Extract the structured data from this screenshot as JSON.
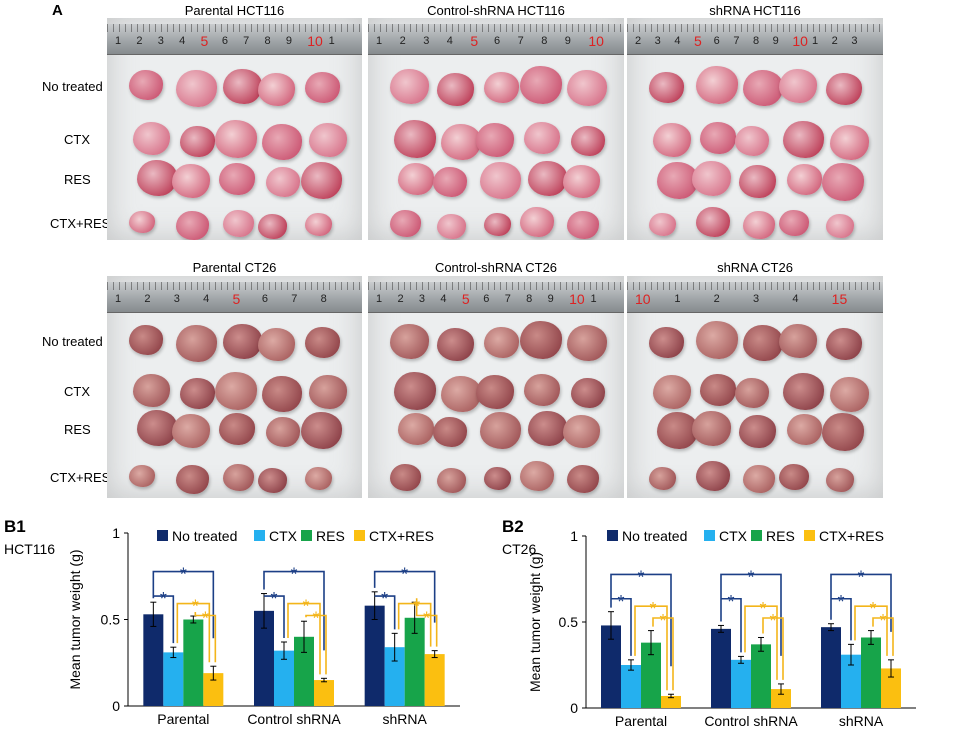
{
  "panel_a": {
    "letter": "A",
    "row_labels": [
      "No treated",
      "CTX",
      "RES",
      "CTX+RES"
    ],
    "photos_top": [
      {
        "title": "Parental HCT116",
        "ruler": [
          "1",
          "2",
          "3",
          "4",
          "5",
          "6",
          "7",
          "8",
          "9",
          "10",
          "1"
        ],
        "red": [
          "5",
          "10"
        ]
      },
      {
        "title": "Control-shRNA HCT116",
        "ruler": [
          "1",
          "2",
          "3",
          "4",
          "5",
          "6",
          "7",
          "8",
          "9",
          "10"
        ],
        "red": [
          "5",
          "10"
        ]
      },
      {
        "title": "shRNA HCT116",
        "ruler": [
          "2",
          "3",
          "4",
          "5",
          "6",
          "7",
          "8",
          "9",
          "10",
          "1",
          "2",
          "3"
        ],
        "red": [
          "5",
          "10"
        ]
      }
    ],
    "photos_bottom": [
      {
        "title": "Parental CT26",
        "ruler": [
          "1",
          "2",
          "3",
          "4",
          "5",
          "6",
          "7",
          "8"
        ],
        "red": [
          "5"
        ]
      },
      {
        "title": "Control-shRNA CT26",
        "ruler": [
          "1",
          "2",
          "3",
          "4",
          "5",
          "6",
          "7",
          "8",
          "9",
          "10",
          "1"
        ],
        "red": [
          "5",
          "10"
        ]
      },
      {
        "title": "shRNA CT26",
        "ruler": [
          "10",
          "1",
          "2",
          "3",
          "4",
          "15"
        ],
        "red": [
          "10",
          "15"
        ]
      }
    ]
  },
  "colors": {
    "no_treated": "#0f2a6b",
    "ctx": "#25b0ef",
    "res": "#17a44a",
    "ctx_res": "#fbbf10",
    "sig_blue": "#1c3f86",
    "sig_yellow": "#f3b51a"
  },
  "chart_data": [
    {
      "type": "bar",
      "panel": "B1",
      "subtitle": "HCT116",
      "ylabel": "Mean tumor weight (g)",
      "ylim": [
        0,
        1
      ],
      "yticks": [
        "0",
        "0.5",
        "1"
      ],
      "categories": [
        "Parental",
        "Control shRNA",
        "shRNA"
      ],
      "series": [
        {
          "name": "No treated",
          "values": [
            0.53,
            0.55,
            0.58
          ],
          "errors": [
            0.07,
            0.1,
            0.08
          ]
        },
        {
          "name": "CTX",
          "values": [
            0.31,
            0.32,
            0.34
          ],
          "errors": [
            0.03,
            0.05,
            0.08
          ]
        },
        {
          "name": "RES",
          "values": [
            0.5,
            0.4,
            0.51
          ],
          "errors": [
            0.02,
            0.09,
            0.09
          ]
        },
        {
          "name": "CTX+RES",
          "values": [
            0.19,
            0.15,
            0.3
          ],
          "errors": [
            0.04,
            0.01,
            0.02
          ]
        }
      ],
      "significance_marker": "*"
    },
    {
      "type": "bar",
      "panel": "B2",
      "subtitle": "CT26",
      "ylabel": "Mean tumor weight (g)",
      "ylim": [
        0,
        1
      ],
      "yticks": [
        "0",
        "0.5",
        "1"
      ],
      "categories": [
        "Parental",
        "Control shRNA",
        "shRNA"
      ],
      "series": [
        {
          "name": "No treated",
          "values": [
            0.48,
            0.46,
            0.47
          ],
          "errors": [
            0.08,
            0.02,
            0.02
          ]
        },
        {
          "name": "CTX",
          "values": [
            0.25,
            0.28,
            0.31
          ],
          "errors": [
            0.03,
            0.02,
            0.06
          ]
        },
        {
          "name": "RES",
          "values": [
            0.38,
            0.37,
            0.41
          ],
          "errors": [
            0.07,
            0.04,
            0.04
          ]
        },
        {
          "name": "CTX+RES",
          "values": [
            0.07,
            0.11,
            0.23
          ],
          "errors": [
            0.01,
            0.03,
            0.05
          ]
        }
      ],
      "significance_marker": "*"
    }
  ]
}
